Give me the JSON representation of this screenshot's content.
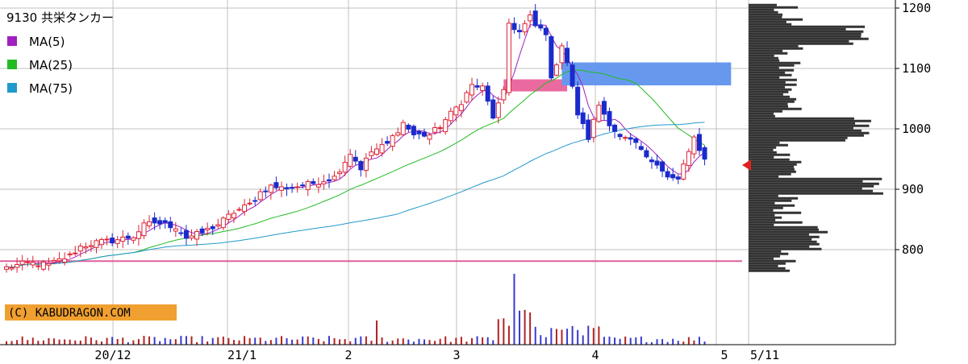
{
  "chart_data": {
    "type": "candlestick",
    "title": "9130 共栄タンカー",
    "copyright": "(C) KABUDRAGON.COM",
    "ylim": [
      760,
      1210
    ],
    "y_ticks": [
      {
        "value": 1200,
        "label": "1200"
      },
      {
        "value": 1100,
        "label": "1100"
      },
      {
        "value": 1000,
        "label": "1000"
      },
      {
        "value": 900,
        "label": "900"
      },
      {
        "value": 800,
        "label": "800"
      }
    ],
    "x_ticks": [
      {
        "index": 23,
        "label": "20/12"
      },
      {
        "index": 45,
        "label": "21/1"
      },
      {
        "index": 66,
        "label": "2"
      },
      {
        "index": 85,
        "label": "3"
      },
      {
        "index": 107,
        "label": "4"
      },
      {
        "index": 127,
        "label": "5"
      },
      {
        "index": 136,
        "label": "5/11"
      }
    ],
    "legend": [
      {
        "name": "MA(5)",
        "color": "#a020c0"
      },
      {
        "name": "MA(25)",
        "color": "#22bb22"
      },
      {
        "name": "MA(75)",
        "color": "#2299cc"
      }
    ],
    "colors": {
      "up": "#dd2233",
      "down": "#1a2acc",
      "volume_up": "#b22222",
      "volume_down": "#3a3ad0",
      "profile": "#333333",
      "support_line": "#e0609a",
      "gap_pink": "#ea6aa0",
      "gap_blue": "#6699ee",
      "marker": "#e02020"
    },
    "support_level": 781,
    "current_price": 940,
    "close_anchors": [
      [
        0,
        770
      ],
      [
        4,
        778
      ],
      [
        8,
        775
      ],
      [
        12,
        790
      ],
      [
        14,
        805
      ],
      [
        17,
        812
      ],
      [
        20,
        815
      ],
      [
        24,
        822
      ],
      [
        26,
        840
      ],
      [
        28,
        845
      ],
      [
        32,
        838
      ],
      [
        34,
        820
      ],
      [
        37,
        828
      ],
      [
        40,
        842
      ],
      [
        43,
        862
      ],
      [
        46,
        875
      ],
      [
        48,
        895
      ],
      [
        50,
        905
      ],
      [
        52,
        902
      ],
      [
        55,
        905
      ],
      [
        58,
        910
      ],
      [
        60,
        915
      ],
      [
        62,
        920
      ],
      [
        65,
        960
      ],
      [
        67,
        935
      ],
      [
        69,
        962
      ],
      [
        72,
        975
      ],
      [
        75,
        1010
      ],
      [
        77,
        990
      ],
      [
        80,
        990
      ],
      [
        82,
        1005
      ],
      [
        84,
        1025
      ],
      [
        86,
        1045
      ],
      [
        88,
        1072
      ],
      [
        90,
        1068
      ],
      [
        92,
        1020
      ],
      [
        94,
        1060
      ],
      [
        95,
        1175
      ],
      [
        97,
        1160
      ],
      [
        99,
        1185
      ],
      [
        100,
        1170
      ],
      [
        102,
        1160
      ],
      [
        103,
        1080
      ],
      [
        105,
        1140
      ],
      [
        106,
        1110
      ],
      [
        108,
        1025
      ],
      [
        110,
        985
      ],
      [
        112,
        1040
      ],
      [
        114,
        1010
      ],
      [
        116,
        985
      ],
      [
        118,
        980
      ],
      [
        120,
        965
      ],
      [
        121,
        950
      ],
      [
        123,
        945
      ],
      [
        125,
        920
      ],
      [
        127,
        915
      ],
      [
        128,
        940
      ],
      [
        130,
        985
      ],
      [
        131,
        960
      ],
      [
        132,
        948
      ]
    ],
    "gaps": [
      {
        "color": "pink",
        "x_from": 94,
        "x_to": 106,
        "y_from": 1062,
        "y_to": 1082
      },
      {
        "color": "blue",
        "x_from": 105,
        "x_to": 137,
        "y_from": 1072,
        "y_to": 1110
      }
    ]
  }
}
